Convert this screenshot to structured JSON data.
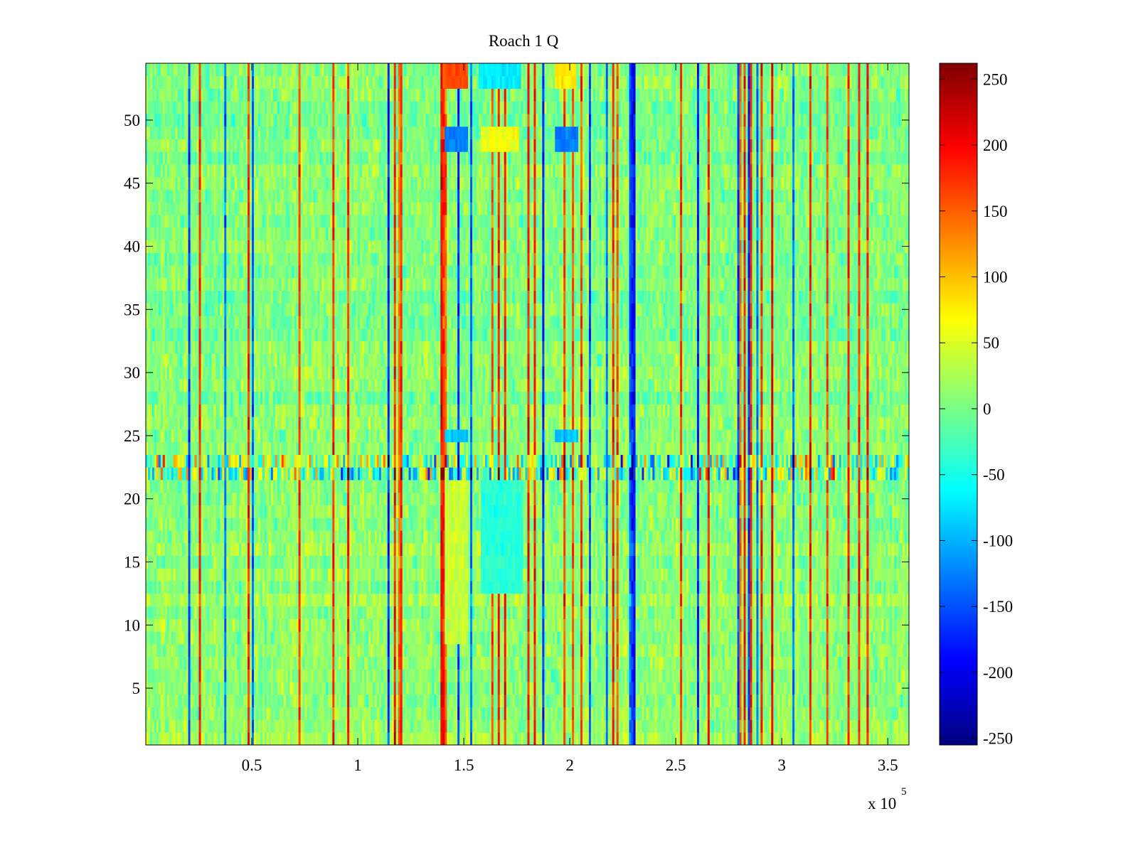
{
  "chart_data": {
    "type": "heatmap",
    "title": "Roach 1 Q",
    "xlabel": "",
    "ylabel": "",
    "xlim": [
      0,
      360000
    ],
    "ylim": [
      0.5,
      54.5
    ],
    "x_ticks": [
      50000,
      100000,
      150000,
      200000,
      250000,
      300000,
      350000
    ],
    "x_tick_labels": [
      "0.5",
      "1",
      "1.5",
      "2",
      "2.5",
      "3",
      "3.5"
    ],
    "x_exponent_label": {
      "base": "x 10",
      "exp": "5"
    },
    "y_ticks": [
      5,
      10,
      15,
      20,
      25,
      30,
      35,
      40,
      45,
      50
    ],
    "y_tick_labels": [
      "5",
      "10",
      "15",
      "20",
      "25",
      "30",
      "35",
      "40",
      "45",
      "50"
    ],
    "rows": 54,
    "colormap": "jet",
    "clim": [
      -255,
      262
    ],
    "colorbar": {
      "ticks": [
        250,
        200,
        150,
        100,
        50,
        0,
        -50,
        -100,
        -150,
        -200,
        -250
      ],
      "tick_labels": [
        "250",
        "200",
        "150",
        "100",
        "50",
        "0",
        "-50",
        "-100",
        "-150",
        "-200",
        "-250"
      ]
    },
    "features": {
      "row_bands": [
        {
          "rows": [
            1,
            21
          ],
          "value": 15
        },
        {
          "rows": [
            22,
            23
          ],
          "value": 0,
          "variance": "high"
        },
        {
          "rows": [
            24,
            54
          ],
          "value": 5
        }
      ],
      "hot_columns_x": [
        25000,
        48000,
        95000,
        117000,
        140000,
        183000,
        220000,
        265000,
        290000,
        313000,
        340000
      ],
      "blobs": [
        {
          "x": [
            140000,
            152000
          ],
          "rows": [
            53,
            54
          ],
          "value": 160
        },
        {
          "x": [
            193000,
            203000
          ],
          "rows": [
            53,
            54
          ],
          "value": 80
        },
        {
          "x": [
            157000,
            177000
          ],
          "rows": [
            53,
            54
          ],
          "value": -70
        },
        {
          "x": [
            141000,
            152000
          ],
          "rows": [
            48,
            49
          ],
          "value": -130
        },
        {
          "x": [
            193000,
            204000
          ],
          "rows": [
            48,
            49
          ],
          "value": -130
        },
        {
          "x": [
            158000,
            176000
          ],
          "rows": [
            48,
            49
          ],
          "value": 60
        },
        {
          "x": [
            141000,
            152000
          ],
          "rows": [
            25,
            25
          ],
          "value": -90
        },
        {
          "x": [
            193000,
            204000
          ],
          "rows": [
            25,
            25
          ],
          "value": -90
        },
        {
          "x": [
            141000,
            152000
          ],
          "rows": [
            9,
            21
          ],
          "value": 40
        },
        {
          "x": [
            158000,
            178000
          ],
          "rows": [
            13,
            21
          ],
          "value": -40
        }
      ]
    }
  }
}
